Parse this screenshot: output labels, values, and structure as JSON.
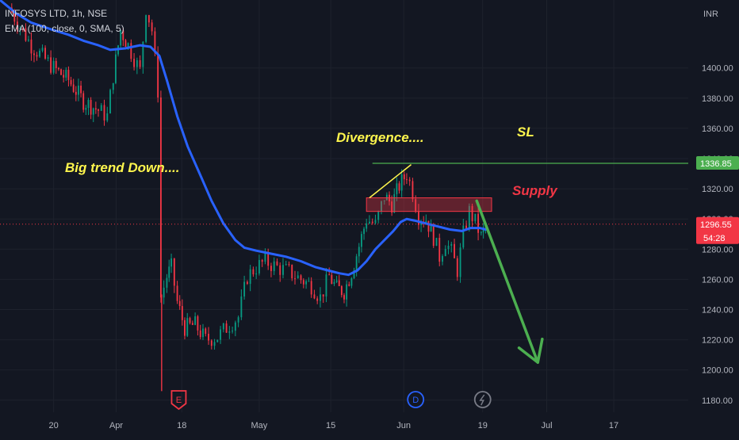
{
  "header": {
    "symbol_line": "INFOSYS LTD, 1h, NSE",
    "indicator_line": "EMA (100, close, 0, SMA, 5)"
  },
  "currency": "INR",
  "chart_data": {
    "type": "candlestick",
    "symbol": "INFOSYS LTD",
    "interval": "1h",
    "exchange": "NSE",
    "y_ticks": [
      1180,
      1200,
      1220,
      1240,
      1260,
      1280,
      1300,
      1320,
      1340,
      1360,
      1380,
      1400
    ],
    "y_tick_labels": [
      "1180.00",
      "1200.00",
      "1220.00",
      "1240.00",
      "1260.00",
      "1280.00",
      "1300.00",
      "1320.00",
      "1340.00",
      "1360.00",
      "1380.00",
      "1400.00"
    ],
    "x_tick_labels": [
      "20",
      "Apr",
      "18",
      "May",
      "15",
      "Jun",
      "19",
      "Jul",
      "17"
    ],
    "x_tick_positions": [
      0.0,
      4.2,
      8.6,
      13.8,
      18.6,
      23.5,
      28.8,
      33.1,
      37.6
    ],
    "x_range": [
      -3.6,
      42.6
    ],
    "ylim": [
      1172,
      1445
    ],
    "grid": true,
    "price_segments": [
      {
        "x": -3,
        "y": 1440
      },
      {
        "x": -1.5,
        "y": 1415
      },
      {
        "x": 0,
        "y": 1400
      },
      {
        "x": 1,
        "y": 1392
      },
      {
        "x": 2,
        "y": 1378
      },
      {
        "x": 3,
        "y": 1372
      },
      {
        "x": 3.6,
        "y": 1368
      },
      {
        "x": 4,
        "y": 1395
      },
      {
        "x": 4.5,
        "y": 1425
      },
      {
        "x": 5,
        "y": 1415
      },
      {
        "x": 5.8,
        "y": 1398
      },
      {
        "x": 6.2,
        "y": 1440
      },
      {
        "x": 6.6,
        "y": 1425
      },
      {
        "x": 7.0,
        "y": 1385
      },
      {
        "x": 7.2,
        "y": 1248
      },
      {
        "x": 7.6,
        "y": 1262
      },
      {
        "x": 7.9,
        "y": 1268
      },
      {
        "x": 8.3,
        "y": 1245
      },
      {
        "x": 8.8,
        "y": 1228
      },
      {
        "x": 9.5,
        "y": 1230
      },
      {
        "x": 10.2,
        "y": 1220
      },
      {
        "x": 11.0,
        "y": 1222
      },
      {
        "x": 11.8,
        "y": 1230
      },
      {
        "x": 12.4,
        "y": 1235
      },
      {
        "x": 13.0,
        "y": 1262
      },
      {
        "x": 13.6,
        "y": 1268
      },
      {
        "x": 14.2,
        "y": 1272
      },
      {
        "x": 15.0,
        "y": 1268
      },
      {
        "x": 15.8,
        "y": 1265
      },
      {
        "x": 16.6,
        "y": 1260
      },
      {
        "x": 17.3,
        "y": 1256
      },
      {
        "x": 17.9,
        "y": 1248
      },
      {
        "x": 18.5,
        "y": 1262
      },
      {
        "x": 19.0,
        "y": 1254
      },
      {
        "x": 19.5,
        "y": 1252
      },
      {
        "x": 20.0,
        "y": 1265
      },
      {
        "x": 20.5,
        "y": 1282
      },
      {
        "x": 21.0,
        "y": 1300
      },
      {
        "x": 21.6,
        "y": 1296
      },
      {
        "x": 22.2,
        "y": 1315
      },
      {
        "x": 22.7,
        "y": 1310
      },
      {
        "x": 23.2,
        "y": 1322
      },
      {
        "x": 23.7,
        "y": 1330
      },
      {
        "x": 24.1,
        "y": 1318
      },
      {
        "x": 24.5,
        "y": 1302
      },
      {
        "x": 25.0,
        "y": 1300
      },
      {
        "x": 25.5,
        "y": 1288
      },
      {
        "x": 25.9,
        "y": 1275
      },
      {
        "x": 26.3,
        "y": 1285
      },
      {
        "x": 26.7,
        "y": 1278
      },
      {
        "x": 27.1,
        "y": 1266
      },
      {
        "x": 27.5,
        "y": 1290
      },
      {
        "x": 27.9,
        "y": 1305
      },
      {
        "x": 28.3,
        "y": 1298
      },
      {
        "x": 28.7,
        "y": 1288
      },
      {
        "x": 29.0,
        "y": 1296
      }
    ],
    "ema_line": [
      {
        "x": -3.6,
        "y": 1445
      },
      {
        "x": -2.5,
        "y": 1436
      },
      {
        "x": -1.5,
        "y": 1430
      },
      {
        "x": 0,
        "y": 1425
      },
      {
        "x": 1,
        "y": 1422
      },
      {
        "x": 2,
        "y": 1418
      },
      {
        "x": 3,
        "y": 1415
      },
      {
        "x": 3.8,
        "y": 1412
      },
      {
        "x": 4.8,
        "y": 1413
      },
      {
        "x": 5.8,
        "y": 1415
      },
      {
        "x": 6.5,
        "y": 1414
      },
      {
        "x": 7.1,
        "y": 1408
      },
      {
        "x": 7.6,
        "y": 1392
      },
      {
        "x": 8.3,
        "y": 1368
      },
      {
        "x": 9.0,
        "y": 1348
      },
      {
        "x": 9.8,
        "y": 1330
      },
      {
        "x": 10.6,
        "y": 1312
      },
      {
        "x": 11.4,
        "y": 1297
      },
      {
        "x": 12.2,
        "y": 1286
      },
      {
        "x": 12.8,
        "y": 1281
      },
      {
        "x": 13.6,
        "y": 1279
      },
      {
        "x": 14.6,
        "y": 1277
      },
      {
        "x": 15.6,
        "y": 1275
      },
      {
        "x": 16.6,
        "y": 1272
      },
      {
        "x": 17.6,
        "y": 1268
      },
      {
        "x": 18.4,
        "y": 1266
      },
      {
        "x": 19.2,
        "y": 1264
      },
      {
        "x": 19.8,
        "y": 1263
      },
      {
        "x": 20.4,
        "y": 1266
      },
      {
        "x": 21.0,
        "y": 1272
      },
      {
        "x": 21.6,
        "y": 1280
      },
      {
        "x": 22.2,
        "y": 1286
      },
      {
        "x": 22.8,
        "y": 1292
      },
      {
        "x": 23.3,
        "y": 1298
      },
      {
        "x": 23.7,
        "y": 1300
      },
      {
        "x": 24.2,
        "y": 1299
      },
      {
        "x": 25.0,
        "y": 1297
      },
      {
        "x": 25.8,
        "y": 1295
      },
      {
        "x": 26.6,
        "y": 1293
      },
      {
        "x": 27.4,
        "y": 1292
      },
      {
        "x": 28.0,
        "y": 1294
      },
      {
        "x": 28.6,
        "y": 1294
      },
      {
        "x": 29.0,
        "y": 1293
      }
    ],
    "annotations": {
      "trend_text": "Big trend Down....",
      "divergence_text": "Divergence....",
      "sl_text": "SL",
      "supply_text": "Supply",
      "sl_level": 1336.85,
      "supply_zone": {
        "x_start": 21.0,
        "x_end": 29.4,
        "y_low": 1305,
        "y_high": 1314
      },
      "divergence_line": {
        "x1": 21.2,
        "y1": 1314,
        "x2": 24.0,
        "y2": 1336
      },
      "sl_line": {
        "x_start": 21.4,
        "x_end": 42.6
      },
      "down_arrow": {
        "x1": 28.4,
        "y1": 1312,
        "x2": 32.5,
        "y2": 1205
      },
      "current_price_line": 1296.55
    },
    "price_labels": {
      "sl_label": "1336.85",
      "current_price": "1296.55",
      "countdown": "54:28"
    },
    "event_markers": [
      {
        "x": 8.4,
        "label": "E",
        "color": "#f23645",
        "shape": "pin"
      },
      {
        "x": 24.3,
        "label": "D",
        "color": "#2962ff",
        "shape": "circle"
      },
      {
        "x": 28.8,
        "label": "split-icon",
        "color": "#787b86",
        "shape": "circle"
      }
    ],
    "colors": {
      "background": "#131722",
      "grid": "#1e222d",
      "up": "#089981",
      "down": "#f23645",
      "ema": "#2962ff",
      "annotation_yellow": "#fff64d",
      "supply_red": "#f23645",
      "sl_green": "#4caf50",
      "arrow_green": "#4caf50"
    }
  }
}
